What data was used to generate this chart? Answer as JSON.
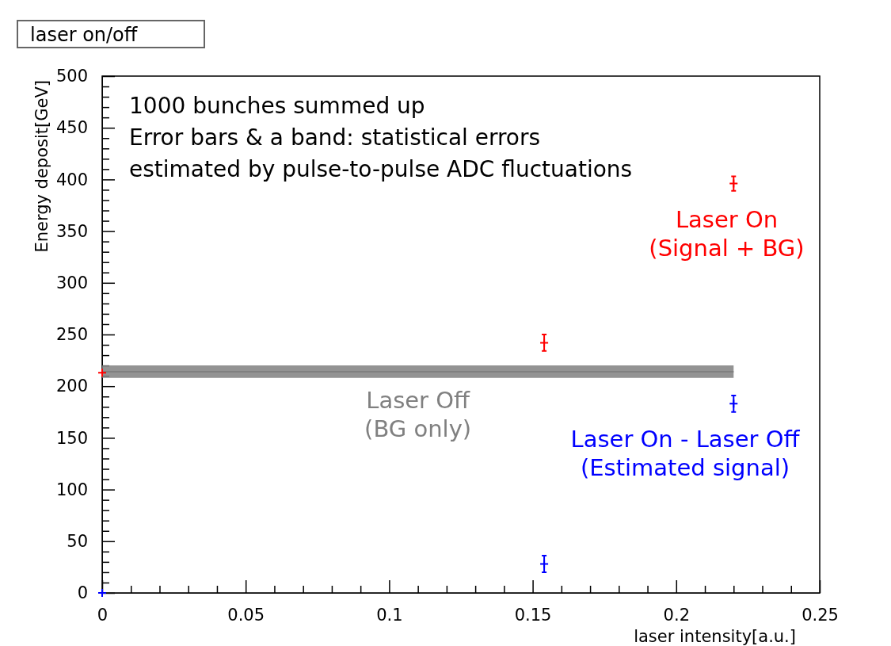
{
  "chart_data": {
    "type": "scatter",
    "title": "laser on/off",
    "xlabel": "laser intensity[a.u.]",
    "ylabel": "Energy deposit[GeV]",
    "annotations": [
      "1000 bunches summed up",
      "Error bars & a band: statistical errors",
      "estimated by pulse-to-pulse ADC fluctuations"
    ],
    "xlim": [
      0,
      0.25
    ],
    "ylim": [
      0,
      500
    ],
    "xticks": [
      0,
      {
        "value": 0.01,
        "label": null
      },
      {
        "value": 0.02,
        "label": null
      },
      {
        "value": 0.03,
        "label": null
      },
      {
        "value": 0.04,
        "label": null
      },
      0.05,
      {
        "value": 0.06,
        "label": null
      },
      {
        "value": 0.07,
        "label": null
      },
      {
        "value": 0.08,
        "label": null
      },
      {
        "value": 0.09,
        "label": null
      },
      0.1,
      {
        "value": 0.11,
        "label": null
      },
      {
        "value": 0.12,
        "label": null
      },
      {
        "value": 0.13,
        "label": null
      },
      {
        "value": 0.14,
        "label": null
      },
      0.15,
      {
        "value": 0.16,
        "label": null
      },
      {
        "value": 0.17,
        "label": null
      },
      {
        "value": 0.18,
        "label": null
      },
      {
        "value": 0.19,
        "label": null
      },
      0.2,
      {
        "value": 0.21,
        "label": null
      },
      {
        "value": 0.22,
        "label": null
      },
      {
        "value": 0.23,
        "label": null
      },
      {
        "value": 0.24,
        "label": null
      },
      0.25
    ],
    "yticks": [
      0,
      {
        "value": 10,
        "label": null
      },
      {
        "value": 20,
        "label": null
      },
      {
        "value": 30,
        "label": null
      },
      {
        "value": 40,
        "label": null
      },
      50,
      {
        "value": 60,
        "label": null
      },
      {
        "value": 70,
        "label": null
      },
      {
        "value": 80,
        "label": null
      },
      {
        "value": 90,
        "label": null
      },
      100,
      {
        "value": 110,
        "label": null
      },
      {
        "value": 120,
        "label": null
      },
      {
        "value": 130,
        "label": null
      },
      {
        "value": 140,
        "label": null
      },
      150,
      {
        "value": 160,
        "label": null
      },
      {
        "value": 170,
        "label": null
      },
      {
        "value": 180,
        "label": null
      },
      {
        "value": 190,
        "label": null
      },
      200,
      {
        "value": 210,
        "label": null
      },
      {
        "value": 220,
        "label": null
      },
      {
        "value": 230,
        "label": null
      },
      {
        "value": 240,
        "label": null
      },
      250,
      {
        "value": 260,
        "label": null
      },
      {
        "value": 270,
        "label": null
      },
      {
        "value": 280,
        "label": null
      },
      {
        "value": 290,
        "label": null
      },
      300,
      {
        "value": 310,
        "label": null
      },
      {
        "value": 320,
        "label": null
      },
      {
        "value": 330,
        "label": null
      },
      {
        "value": 340,
        "label": null
      },
      350,
      {
        "value": 360,
        "label": null
      },
      {
        "value": 370,
        "label": null
      },
      {
        "value": 380,
        "label": null
      },
      {
        "value": 390,
        "label": null
      },
      400,
      {
        "value": 410,
        "label": null
      },
      {
        "value": 420,
        "label": null
      },
      {
        "value": 430,
        "label": null
      },
      {
        "value": 440,
        "label": null
      },
      450,
      {
        "value": 460,
        "label": null
      },
      {
        "value": 470,
        "label": null
      },
      {
        "value": 480,
        "label": null
      },
      {
        "value": 490,
        "label": null
      },
      500
    ],
    "marker": "cross",
    "legend": false,
    "grid": false,
    "series": [
      {
        "name": "Laser Off\n(BG only)",
        "type": "line",
        "marker": "none",
        "color": "#808080",
        "x": [
          0,
          0.22
        ],
        "values": [
          214,
          214
        ],
        "lower": [
          208,
          208
        ],
        "upper": [
          220,
          220
        ]
      },
      {
        "name": "Laser On\n(Signal + BG)",
        "color": "#ff0000",
        "x": [
          0,
          0.154,
          0.22
        ],
        "values": [
          213,
          242,
          396
        ],
        "errors": [
          null,
          8,
          7
        ]
      },
      {
        "name": "Laser On - Laser Off\n(Estimated signal)",
        "color": "#0000ff",
        "x": [
          0,
          0.154,
          0.22
        ],
        "values": [
          0,
          28,
          183
        ],
        "errors": [
          null,
          8,
          8
        ]
      }
    ]
  }
}
